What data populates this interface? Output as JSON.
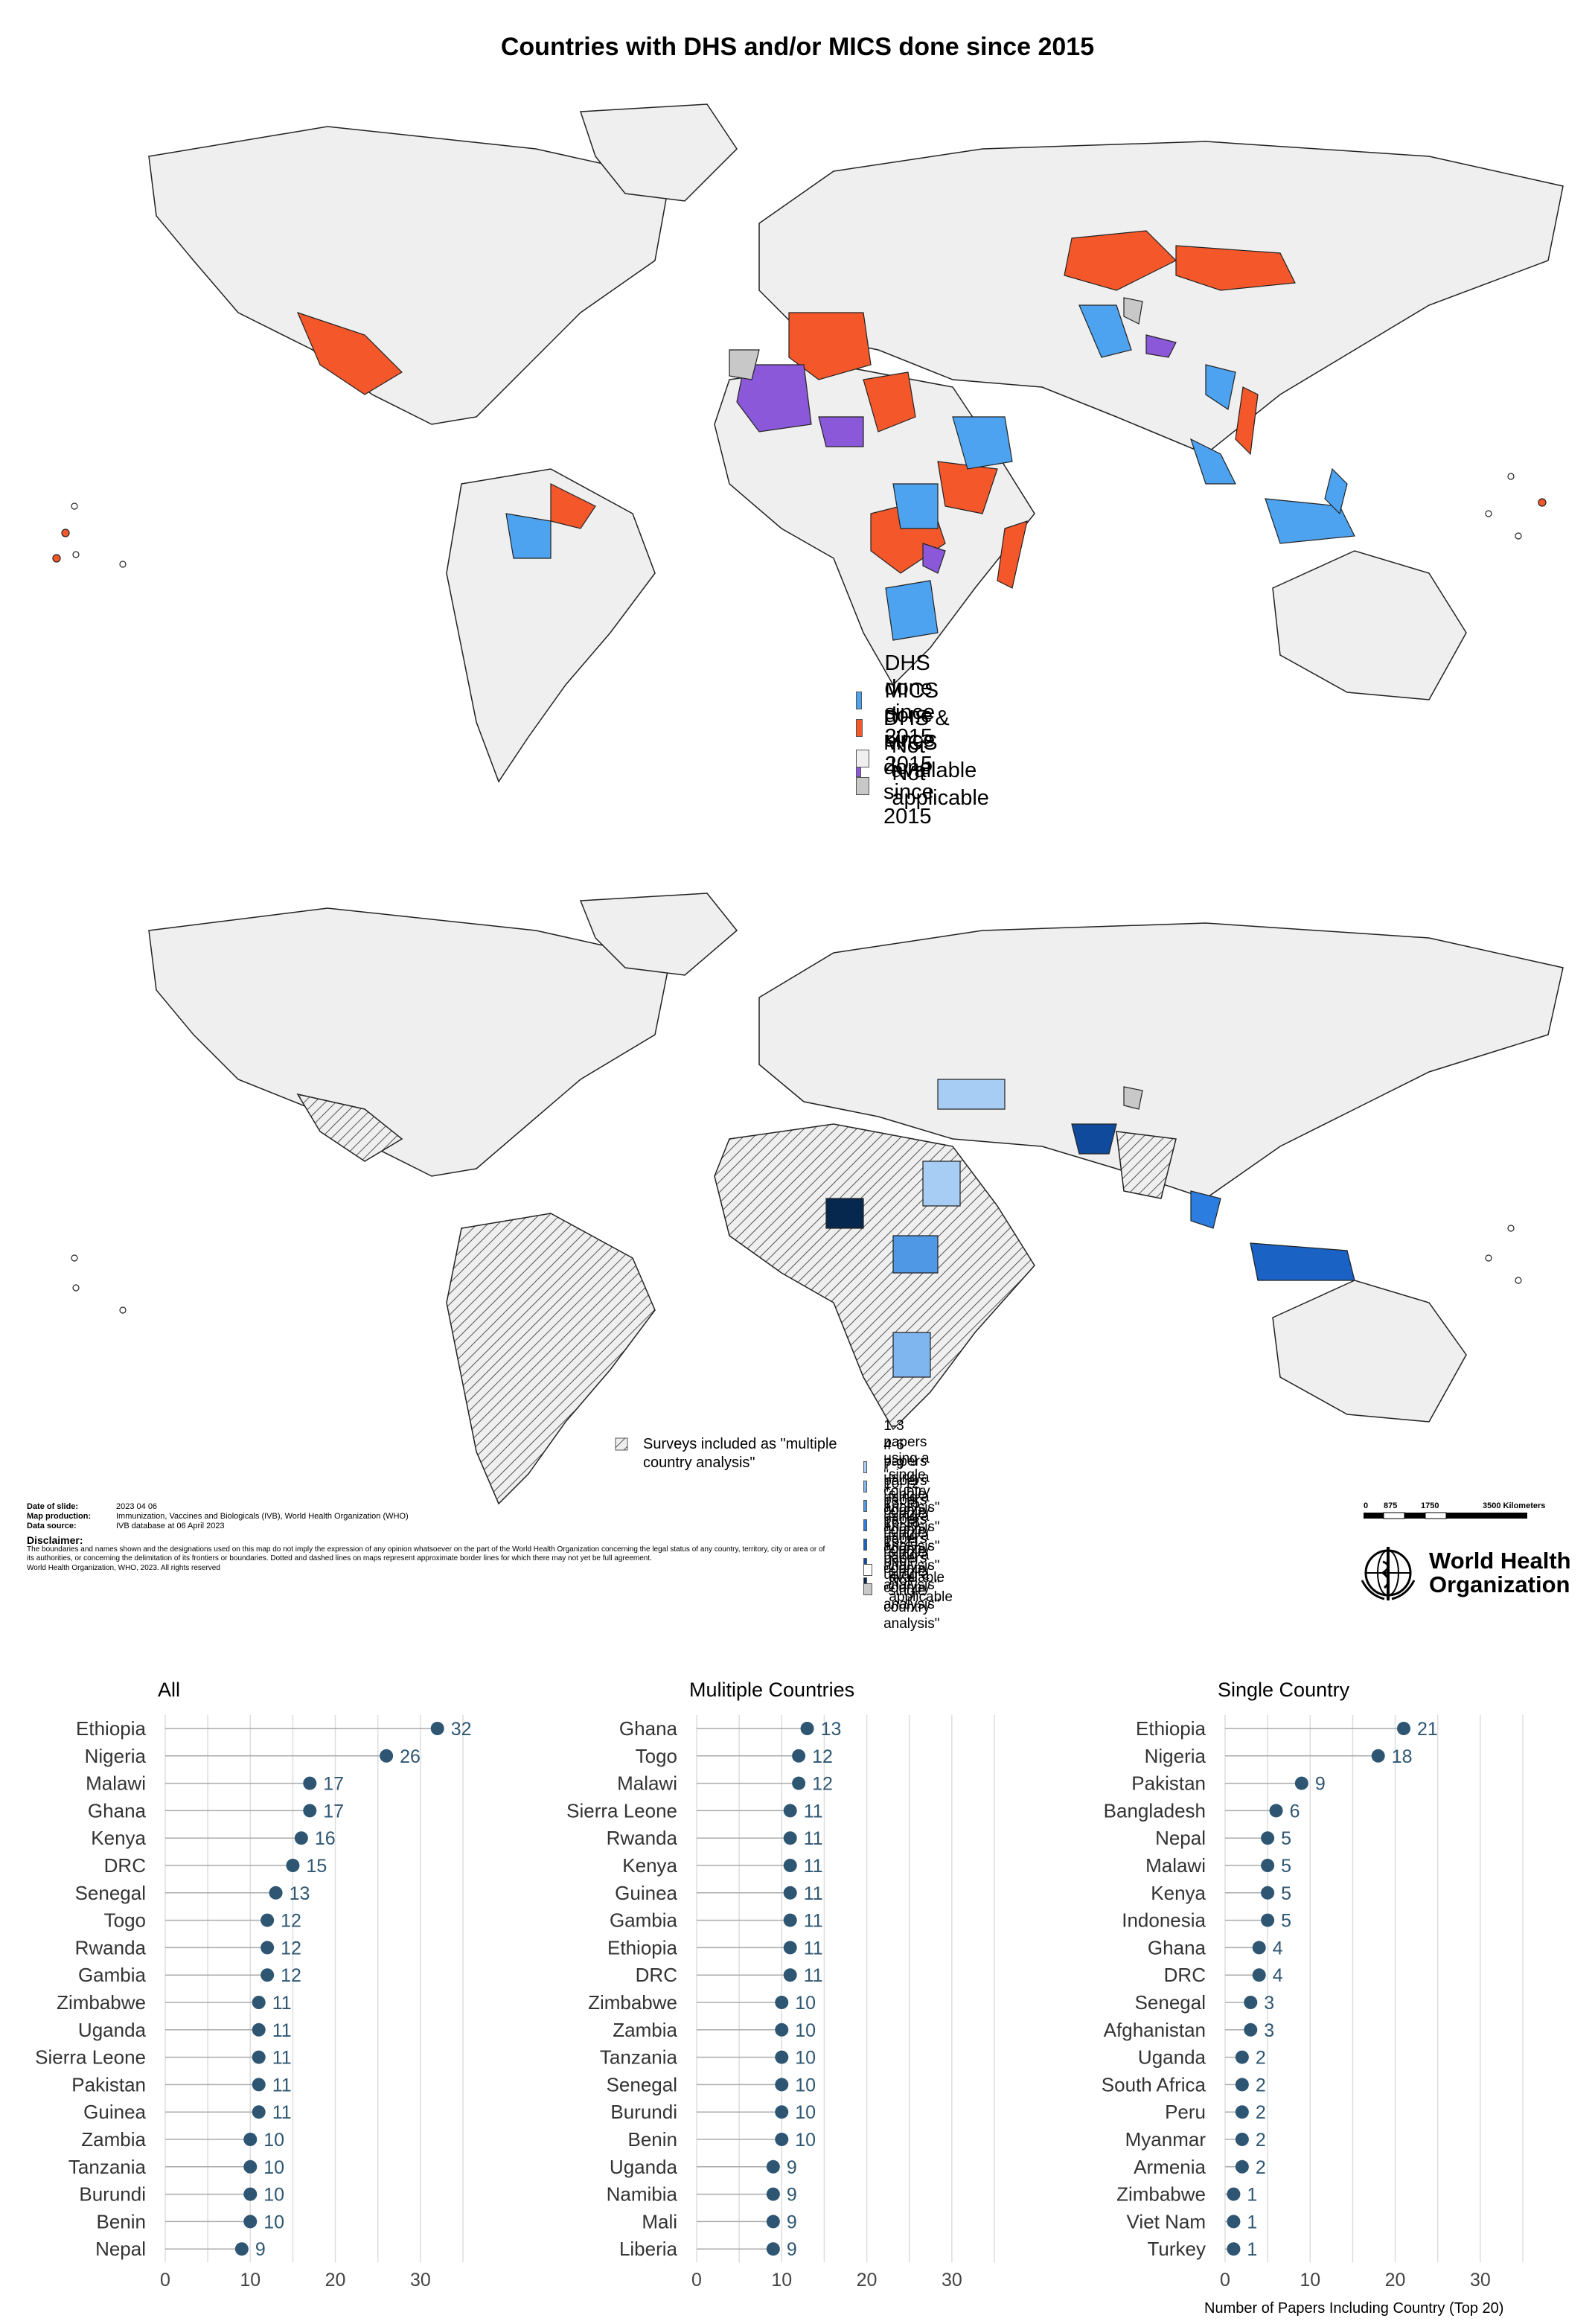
{
  "map1": {
    "title": "Countries with DHS and/or MICS done since 2015",
    "legend": [
      {
        "label": "DHS done since 2015",
        "color": "#4da3f0"
      },
      {
        "label": "MICS done since 2015",
        "color": "#f4582a"
      },
      {
        "label": "DHS & MICS done since 2015",
        "color": "#8a58d8"
      },
      {
        "label": "Not available",
        "color": "#efefef"
      },
      {
        "label": "Not applicable",
        "color": "#c8c8c8"
      }
    ]
  },
  "map2": {
    "hatch_legend": "Surveys included as \"multiple country analysis\"",
    "legend": [
      {
        "label": "1-3 papers using a \"single country analysis\"",
        "color": "#a8cdf5"
      },
      {
        "label": "4-6 papers using a \"single country analysis\"",
        "color": "#7fb6f0"
      },
      {
        "label": "7-9 papers using a \"single country analysis\"",
        "color": "#4f98e6"
      },
      {
        "label": "10-12 papers using a \"single country analysis\"",
        "color": "#2b7de0"
      },
      {
        "label": "13-15 papers using a \"single country analysis\"",
        "color": "#1a62c4"
      },
      {
        "label": "16-18 papers using a \"single country analysis\"",
        "color": "#104a9c"
      },
      {
        "label": "19-21 papers using a \"single country analysis\"",
        "color": "#06284f"
      },
      {
        "label": "Not available",
        "color": "#ffffff"
      },
      {
        "label": "Not applicable",
        "color": "#c8c8c8"
      }
    ],
    "meta": {
      "date_label": "Date of slide:",
      "date_value": "2023 04 06",
      "production_label": "Map production:",
      "production_value": "Immunization, Vaccines and Biologicals (IVB), World Health Organization (WHO)",
      "source_label": "Data source:",
      "source_value": "IVB database at 06 April 2023",
      "disclaimer_title": "Disclaimer:",
      "disclaimer_text": "The boundaries and names shown and the designations used on this map do not imply the expression of any opinion whatsoever on the part of the World Health Organization concerning the legal status of any country, territory, city or area or of its authorities, or concerning the delimitation of its frontiers or boundaries. Dotted and dashed lines on maps represent approximate border lines for which there may not yet be full agreement.",
      "copyright": "World Health Organization, WHO, 2023. All rights reserved"
    },
    "scale": {
      "ticks": [
        "0",
        "875",
        "1750",
        "3500 Kilometers"
      ]
    },
    "who_logo": {
      "line1": "World Health",
      "line2": "Organization"
    }
  },
  "chart_data": [
    {
      "type": "lollipop",
      "title": "All",
      "categories": [
        "Ethiopia",
        "Nigeria",
        "Malawi",
        "Ghana",
        "Kenya",
        "DRC",
        "Senegal",
        "Togo",
        "Rwanda",
        "Gambia",
        "Zimbabwe",
        "Uganda",
        "Sierra Leone",
        "Pakistan",
        "Guinea",
        "Zambia",
        "Tanzania",
        "Burundi",
        "Benin",
        "Nepal"
      ],
      "values": [
        32,
        26,
        17,
        17,
        16,
        15,
        13,
        12,
        12,
        12,
        11,
        11,
        11,
        11,
        11,
        10,
        10,
        10,
        10,
        9
      ],
      "xlim": [
        0,
        35
      ],
      "xticks": [
        0,
        10,
        20,
        30
      ]
    },
    {
      "type": "lollipop",
      "title": "Mulitiple Countries",
      "categories": [
        "Ghana",
        "Togo",
        "Malawi",
        "Sierra Leone",
        "Rwanda",
        "Kenya",
        "Guinea",
        "Gambia",
        "Ethiopia",
        "DRC",
        "Zimbabwe",
        "Zambia",
        "Tanzania",
        "Senegal",
        "Burundi",
        "Benin",
        "Uganda",
        "Namibia",
        "Mali",
        "Liberia"
      ],
      "values": [
        13,
        12,
        12,
        11,
        11,
        11,
        11,
        11,
        11,
        11,
        10,
        10,
        10,
        10,
        10,
        10,
        9,
        9,
        9,
        9
      ],
      "xlim": [
        0,
        35
      ],
      "xticks": [
        0,
        10,
        20,
        30
      ]
    },
    {
      "type": "lollipop",
      "title": "Single Country",
      "categories": [
        "Ethiopia",
        "Nigeria",
        "Pakistan",
        "Bangladesh",
        "Nepal",
        "Malawi",
        "Kenya",
        "Indonesia",
        "Ghana",
        "DRC",
        "Senegal",
        "Afghanistan",
        "Uganda",
        "South Africa",
        "Peru",
        "Myanmar",
        "Armenia",
        "Zimbabwe",
        "Viet Nam",
        "Turkey"
      ],
      "values": [
        21,
        18,
        9,
        6,
        5,
        5,
        5,
        5,
        4,
        4,
        3,
        3,
        2,
        2,
        2,
        2,
        2,
        1,
        1,
        1
      ],
      "xlim": [
        0,
        35
      ],
      "xticks": [
        0,
        10,
        20,
        30
      ],
      "xlabel": "Number of Papers Including Country (Top 20)"
    }
  ],
  "colors": {
    "dot": "#2e5672",
    "value_text": "#2e5672",
    "grid": "#dddddd",
    "stem": "#aaaaaa"
  }
}
